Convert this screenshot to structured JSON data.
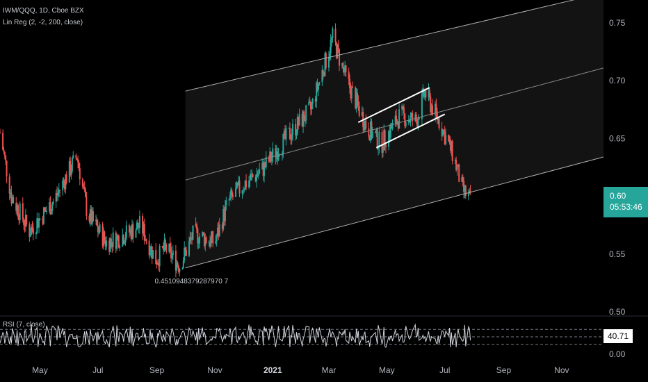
{
  "header": {
    "symbol_line": "IWM/QQQ, 1D, Cboe BZX",
    "indicator_line": "Lin Reg (2, -2, 200, close)",
    "rsi_label": "RSI (7, close)"
  },
  "price_badge": {
    "price": "0.60",
    "countdown": "05:53:46"
  },
  "rsi_badge": {
    "value": "40.71"
  },
  "regression_start_label": "0.4510948379287970 7",
  "colors": {
    "up": "#26a69a",
    "down": "#ef5350",
    "background": "#000000",
    "rsi_line": "#d1d4dc"
  },
  "chart_data": {
    "type": "candlestick",
    "title": "IWM/QQQ, 1D, Cboe BZX",
    "y_ticks": [
      "0.75",
      "0.70",
      "0.65",
      "0.60",
      "0.55",
      "0.50"
    ],
    "ylim": [
      0.5,
      0.76
    ],
    "x_ticks": [
      "May",
      "Jul",
      "Sep",
      "Nov",
      "2021",
      "Mar",
      "May",
      "Jul",
      "Sep",
      "Nov"
    ],
    "xlim": [
      "2020-03-20",
      "2021-12-15"
    ],
    "price_path": [
      {
        "date": "2020-03-20",
        "value": 0.655
      },
      {
        "date": "2020-04-01",
        "value": 0.6
      },
      {
        "date": "2020-04-20",
        "value": 0.57
      },
      {
        "date": "2020-05-15",
        "value": 0.595
      },
      {
        "date": "2020-06-09",
        "value": 0.635
      },
      {
        "date": "2020-06-20",
        "value": 0.585
      },
      {
        "date": "2020-07-10",
        "value": 0.56
      },
      {
        "date": "2020-07-25",
        "value": 0.565
      },
      {
        "date": "2020-08-15",
        "value": 0.575
      },
      {
        "date": "2020-08-31",
        "value": 0.545
      },
      {
        "date": "2020-09-10",
        "value": 0.555
      },
      {
        "date": "2020-09-25",
        "value": 0.54
      },
      {
        "date": "2020-10-10",
        "value": 0.568
      },
      {
        "date": "2020-11-01",
        "value": 0.56
      },
      {
        "date": "2020-11-15",
        "value": 0.595
      },
      {
        "date": "2020-12-01",
        "value": 0.61
      },
      {
        "date": "2020-12-20",
        "value": 0.622
      },
      {
        "date": "2021-01-10",
        "value": 0.645
      },
      {
        "date": "2021-01-25",
        "value": 0.66
      },
      {
        "date": "2021-02-10",
        "value": 0.675
      },
      {
        "date": "2021-03-05",
        "value": 0.737
      },
      {
        "date": "2021-03-20",
        "value": 0.7
      },
      {
        "date": "2021-04-10",
        "value": 0.66
      },
      {
        "date": "2021-04-25",
        "value": 0.645
      },
      {
        "date": "2021-05-15",
        "value": 0.67
      },
      {
        "date": "2021-06-01",
        "value": 0.665
      },
      {
        "date": "2021-06-10",
        "value": 0.69
      },
      {
        "date": "2021-06-25",
        "value": 0.665
      },
      {
        "date": "2021-07-10",
        "value": 0.635
      },
      {
        "date": "2021-07-20",
        "value": 0.605
      },
      {
        "date": "2021-07-28",
        "value": 0.597
      }
    ],
    "linear_regression": {
      "start": "2020-10-01",
      "end": "2021-12-15",
      "mid_start": 0.614,
      "mid_end": 0.711,
      "upper_start": 0.691,
      "upper_end": 0.776,
      "lower_start": 0.538,
      "lower_end": 0.634,
      "start_value": "0.4510948379287970 7"
    },
    "manual_channel": {
      "upper": [
        {
          "date": "2021-04-01",
          "value": 0.664
        },
        {
          "date": "2021-06-15",
          "value": 0.694
        }
      ],
      "lower": [
        {
          "date": "2021-04-20",
          "value": 0.642
        },
        {
          "date": "2021-07-01",
          "value": 0.671
        }
      ]
    },
    "rsi": {
      "ylim": [
        0,
        100
      ],
      "levels": [
        70,
        30
      ],
      "last_value": 40.71
    }
  }
}
